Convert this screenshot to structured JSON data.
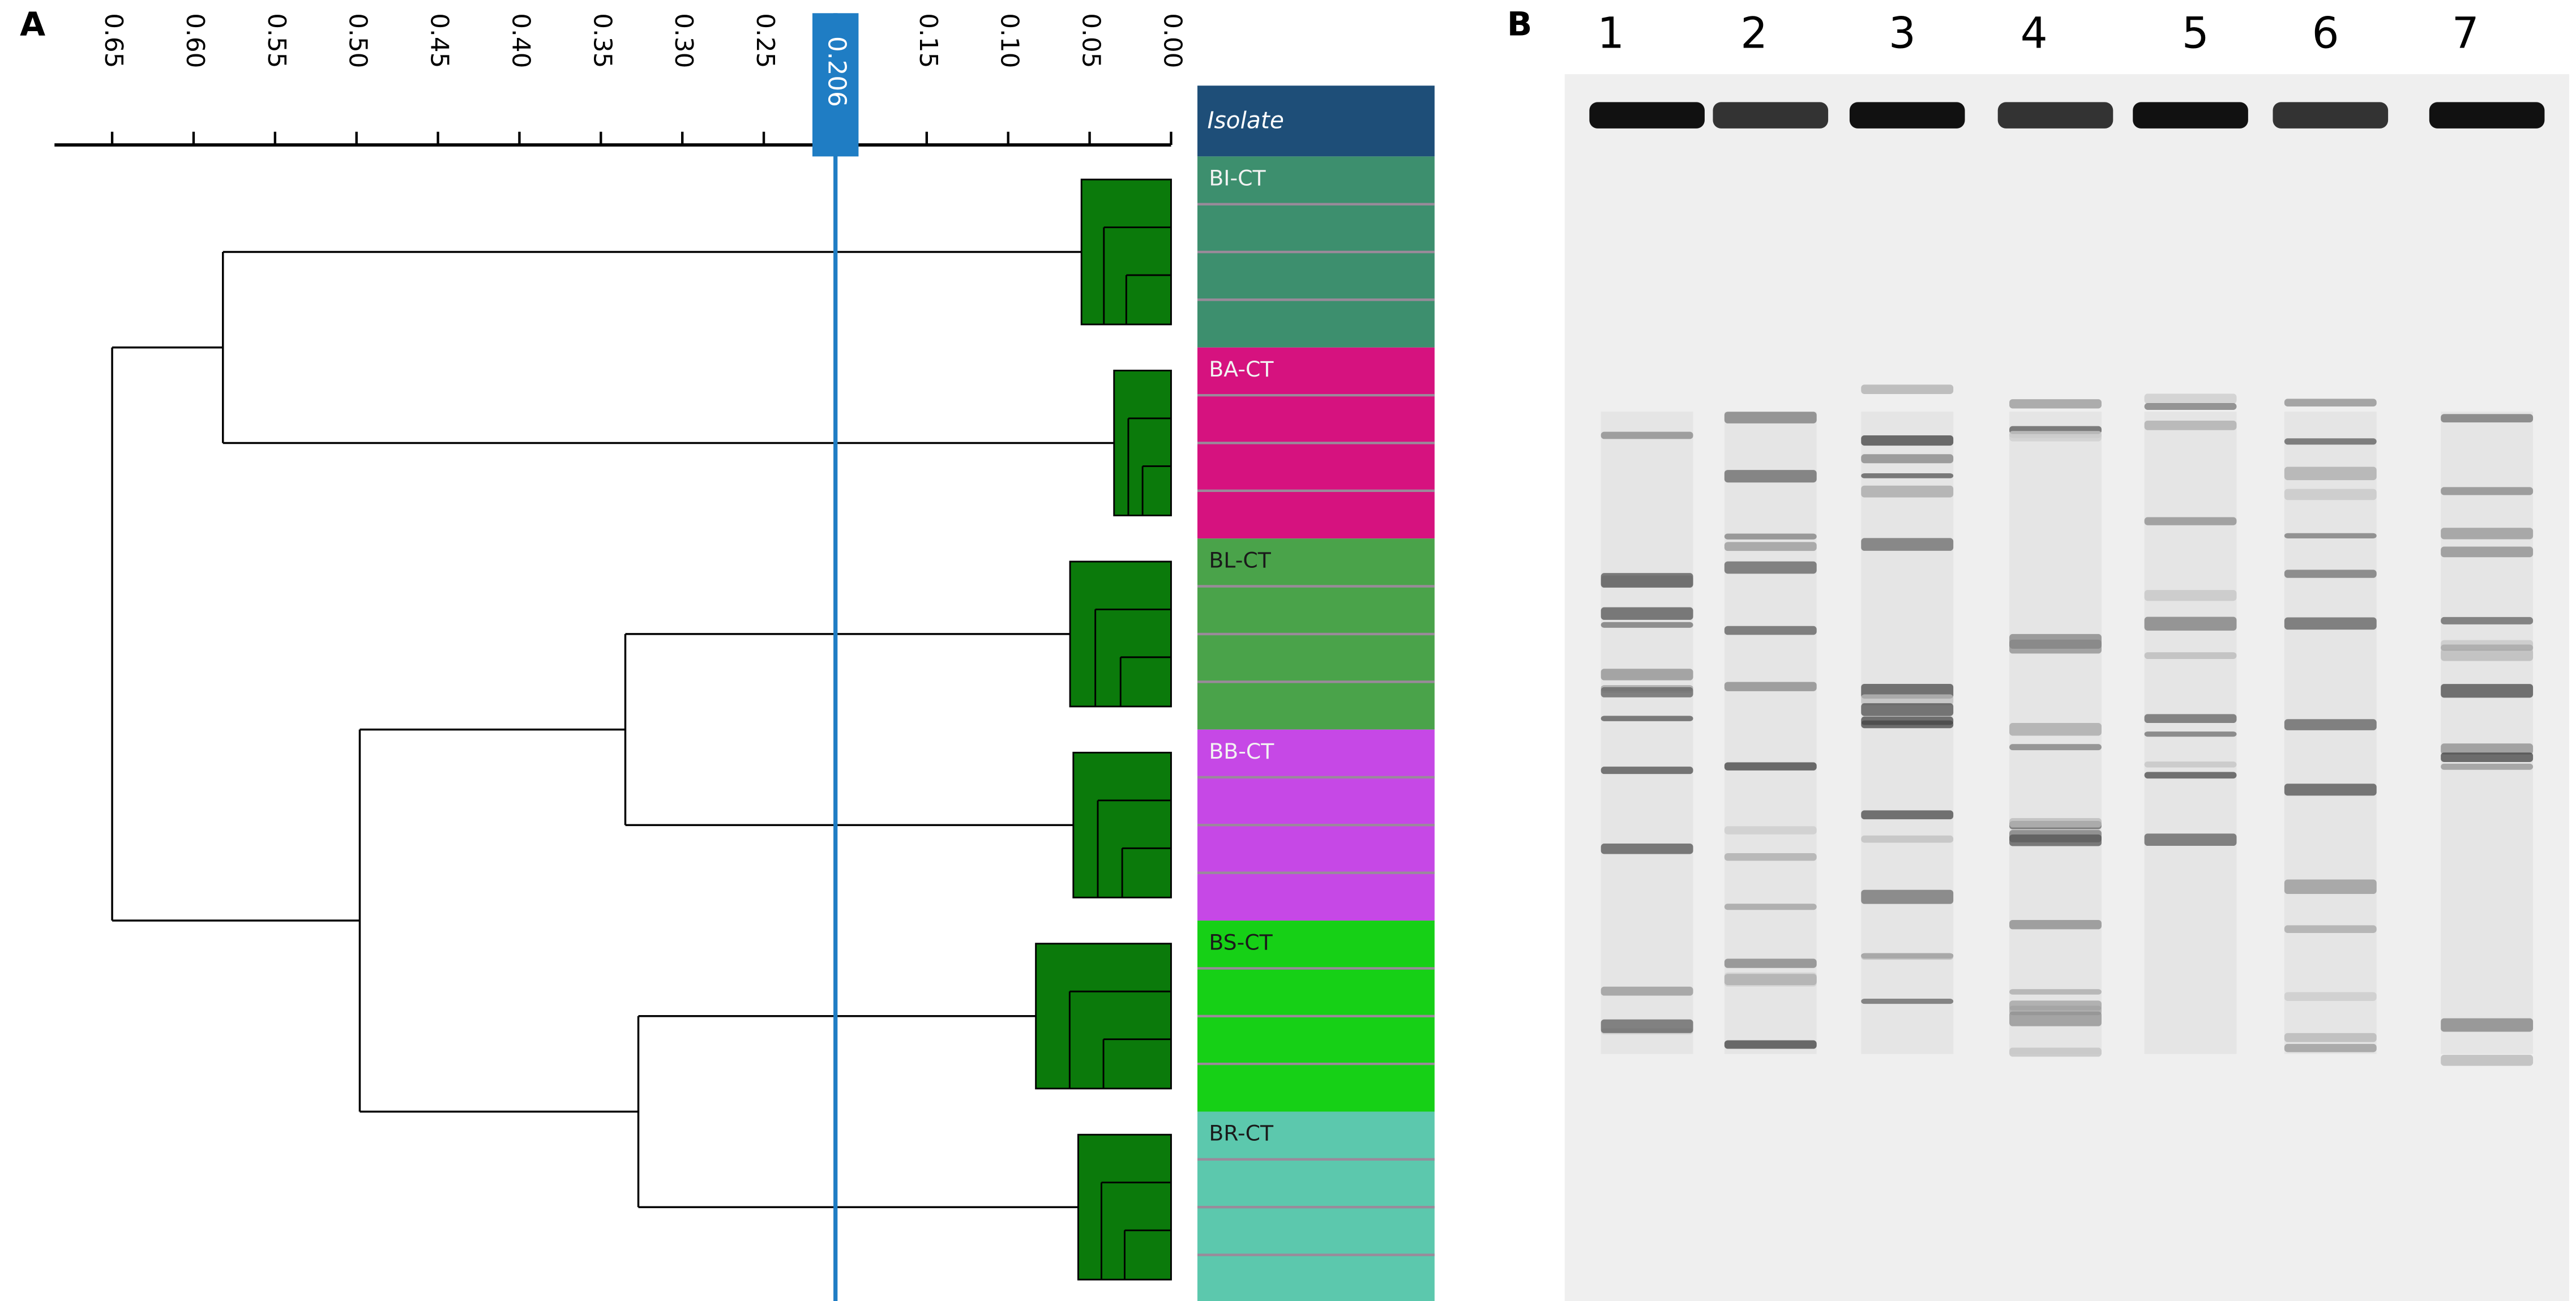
{
  "panel_a": {
    "label": "A",
    "axis_ticks": [
      {
        "value": 0.65,
        "label": "0.65"
      },
      {
        "value": 0.6,
        "label": "0.60"
      },
      {
        "value": 0.55,
        "label": "0.55"
      },
      {
        "value": 0.5,
        "label": "0.50"
      },
      {
        "value": 0.45,
        "label": "0.45"
      },
      {
        "value": 0.4,
        "label": "0.40"
      },
      {
        "value": 0.35,
        "label": "0.35"
      },
      {
        "value": 0.3,
        "label": "0.30"
      },
      {
        "value": 0.25,
        "label": "0.25"
      },
      {
        "value": 0.15,
        "label": "0.15"
      },
      {
        "value": 0.1,
        "label": "0.10"
      },
      {
        "value": 0.05,
        "label": "0.05"
      },
      {
        "value": 0,
        "label": "0.00"
      }
    ],
    "cutoff": 0.206,
    "header": "Isolate",
    "tree": {
      "height": 0.65,
      "children": [
        {
          "height": 0.582,
          "children": [
            {
              "label": "BI-CT",
              "color": "#3d8f6e",
              "label_color": "#f2f2f2",
              "height": 0.055
            },
            {
              "label": "BA-CT",
              "color": "#d6127f",
              "label_color": "#f2f2f2",
              "height": 0.035
            }
          ]
        },
        {
          "height": 0.498,
          "children": [
            {
              "height": 0.335,
              "children": [
                {
                  "label": "BL-CT",
                  "color": "#4aa34a",
                  "label_color": "#1a1a1a",
                  "height": 0.062
                },
                {
                  "label": "BB-CT",
                  "color": "#c648e6",
                  "label_color": "#f2f2f2",
                  "height": 0.06
                }
              ]
            },
            {
              "height": 0.327,
              "children": [
                {
                  "label": "BS-CT",
                  "color": "#16d016",
                  "label_color": "#1a1a1a",
                  "height": 0.083
                },
                {
                  "label": "BR-CT",
                  "color": "#5cc8ad",
                  "label_color": "#1a1a1a",
                  "height": 0.057
                }
              ]
            }
          ]
        }
      ]
    }
  },
  "panel_b": {
    "label": "B",
    "lanes": [
      "1",
      "2",
      "3",
      "4",
      "5",
      "6",
      "7"
    ]
  }
}
